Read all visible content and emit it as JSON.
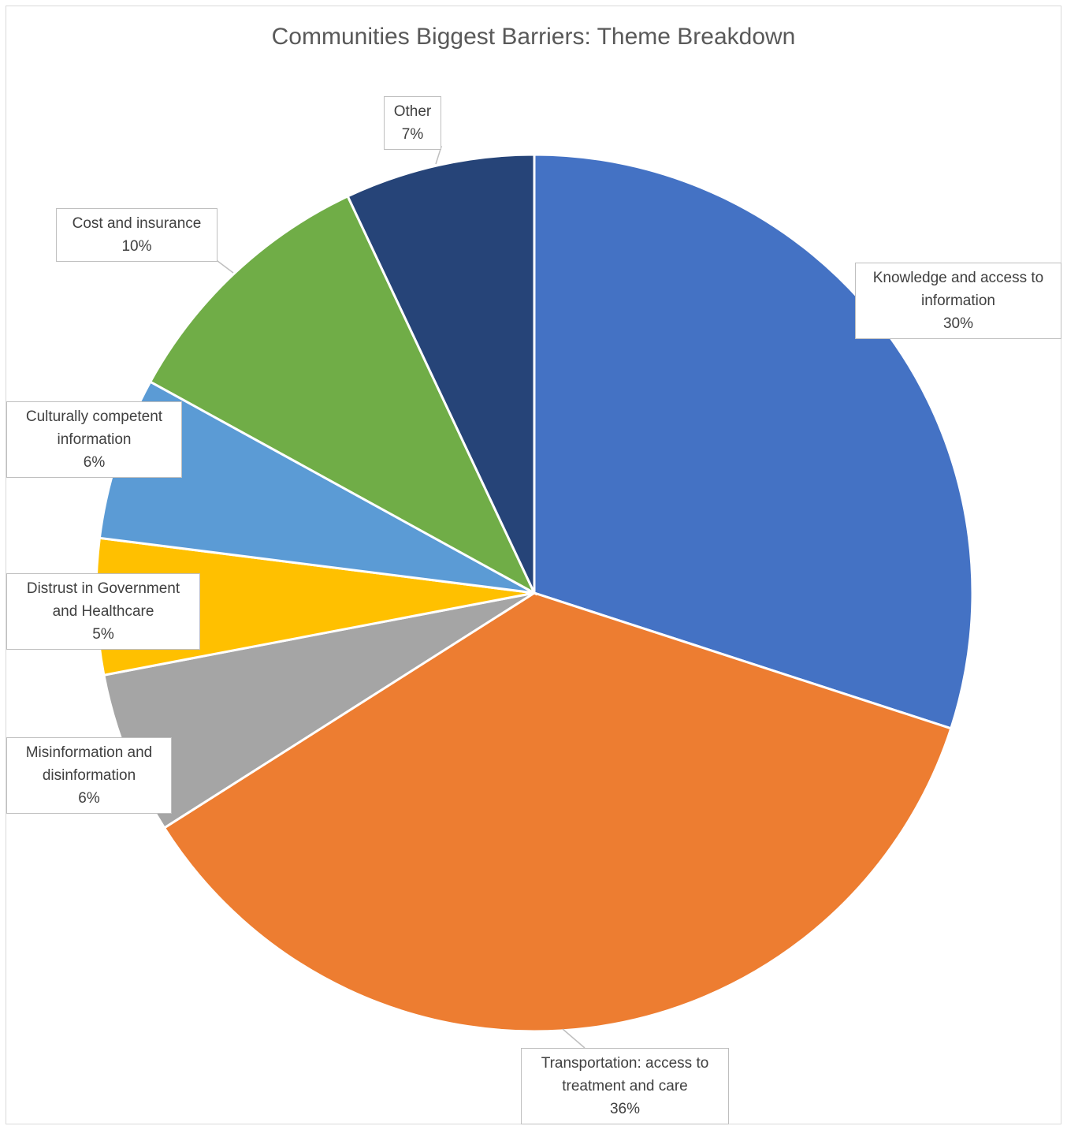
{
  "chart_data": {
    "type": "pie",
    "title": "Communities Biggest Barriers: Theme Breakdown",
    "slices": [
      {
        "label": "Knowledge and access to information",
        "display_label": "Knowledge and access to information",
        "value": 30,
        "value_label": "30%",
        "color": "#4472C4"
      },
      {
        "label": "Transportation: access to treatment and care",
        "display_label": "Transportation: access to treatment and care",
        "value": 36,
        "value_label": "36%",
        "color": "#ED7D31"
      },
      {
        "label": "Misinformation and disinformation",
        "display_label": "Misinformation and disinformation",
        "value": 6,
        "value_label": "6%",
        "color": "#A5A5A5"
      },
      {
        "label": "Distrust in Government and Healthcare",
        "display_label": "Distrust in Government and Healthcare",
        "value": 5,
        "value_label": "5%",
        "color": "#FFC000"
      },
      {
        "label": "Culturally competent information",
        "display_label": "Culturally competent information",
        "value": 6,
        "value_label": "6%",
        "color": "#5B9BD5"
      },
      {
        "label": "Cost and insurance",
        "display_label": "Cost and insurance",
        "value": 10,
        "value_label": "10%",
        "color": "#70AD47"
      },
      {
        "label": "Other",
        "display_label": "Other",
        "value": 7,
        "value_label": "7%",
        "color": "#264478"
      }
    ]
  }
}
